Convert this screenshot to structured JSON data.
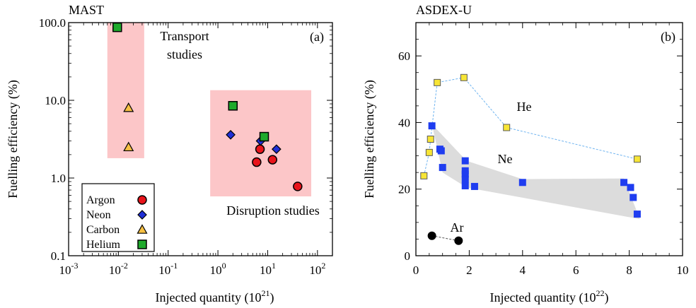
{
  "colors": {
    "argon": "#e8141b",
    "neon": "#1f2fd6",
    "carbon": "#f7c043",
    "helium": "#1faa2c",
    "he_asdex": "#f7e536",
    "ne_asdex": "#1f3df0",
    "ar_asdex": "#000000",
    "region_fill": "#fcc6c8",
    "band_fill": "#dcdcdc",
    "he_line": "#6fb4f0"
  },
  "chart_data": [
    {
      "type": "scatter",
      "title": "MAST",
      "panel_label": "(a)",
      "xlabel_text": "Injected quantity (10",
      "xlabel_sup": "21",
      "xlabel_close": ")",
      "ylabel": "Fuelling efficiency (%)",
      "x_scale": "log",
      "y_scale": "log",
      "xlim": [
        0.001,
        200
      ],
      "ylim": [
        0.1,
        100
      ],
      "x_ticks": [
        {
          "base": "10",
          "exp": "-3",
          "value": 0.001
        },
        {
          "base": "10",
          "exp": "-2",
          "value": 0.01
        },
        {
          "base": "10",
          "exp": "-1",
          "value": 0.1
        },
        {
          "base": "10",
          "exp": "0",
          "value": 1
        },
        {
          "base": "10",
          "exp": "1",
          "value": 10
        },
        {
          "base": "10",
          "exp": "2",
          "value": 100
        }
      ],
      "y_ticks": [
        {
          "label": "0.1",
          "value": 0.1
        },
        {
          "label": "1.0",
          "value": 1
        },
        {
          "label": "10.0",
          "value": 10
        },
        {
          "label": "100.0",
          "value": 100
        }
      ],
      "regions": [
        {
          "label_lines": [
            "Transport",
            "studies"
          ],
          "x_range": [
            0.006,
            0.033
          ],
          "y_range": [
            1.8,
            100
          ]
        },
        {
          "label_lines": [
            "Disruption studies"
          ],
          "x_range": [
            0.7,
            75
          ],
          "y_range": [
            0.58,
            13.5
          ]
        }
      ],
      "series": [
        {
          "name": "Argon",
          "marker": "circle",
          "color_key": "argon",
          "points": [
            [
              6.0,
              1.6
            ],
            [
              7.0,
              2.35
            ],
            [
              12.5,
              1.72
            ],
            [
              40,
              0.78
            ]
          ]
        },
        {
          "name": "Neon",
          "marker": "diamond",
          "color_key": "neon",
          "points": [
            [
              1.8,
              3.6
            ],
            [
              7.2,
              3.0
            ],
            [
              15,
              2.35
            ]
          ]
        },
        {
          "name": "Carbon",
          "marker": "triangle",
          "color_key": "carbon",
          "points": [
            [
              0.016,
              8.0
            ],
            [
              0.016,
              2.5
            ]
          ]
        },
        {
          "name": "Helium",
          "marker": "square",
          "color_key": "helium",
          "points": [
            [
              0.0095,
              87
            ],
            [
              2.0,
              8.5
            ],
            [
              8.5,
              3.4
            ]
          ]
        }
      ],
      "legend_position": "bottom-left"
    },
    {
      "type": "scatter",
      "title": "ASDEX-U",
      "panel_label": "(b)",
      "xlabel_text": "Injected quantity (10",
      "xlabel_sup": "22",
      "xlabel_close": ")",
      "ylabel": "Fuelling efficiency (%)",
      "x_scale": "linear",
      "y_scale": "linear",
      "xlim": [
        0,
        10
      ],
      "ylim": [
        0,
        70
      ],
      "x_ticks": [
        0,
        2,
        4,
        6,
        8,
        10
      ],
      "y_ticks": [
        0,
        20,
        40,
        60
      ],
      "series": [
        {
          "name": "He",
          "marker": "square",
          "color_key": "he_asdex",
          "connected": true,
          "points": [
            [
              0.3,
              24
            ],
            [
              0.55,
              35
            ],
            [
              0.5,
              31
            ],
            [
              0.8,
              52
            ],
            [
              1.8,
              53.5
            ],
            [
              3.4,
              38.5
            ],
            [
              8.3,
              29
            ]
          ],
          "line_order": [
            [
              0.3,
              24
            ],
            [
              0.5,
              31
            ],
            [
              0.55,
              35
            ],
            [
              0.8,
              52
            ],
            [
              1.8,
              53.5
            ],
            [
              3.4,
              38.5
            ],
            [
              8.3,
              29
            ]
          ]
        },
        {
          "name": "Ne",
          "marker": "square",
          "color_key": "ne_asdex",
          "band": true,
          "points": [
            [
              0.6,
              39
            ],
            [
              0.9,
              32
            ],
            [
              0.95,
              31.5
            ],
            [
              1.0,
              26.5
            ],
            [
              1.85,
              28.5
            ],
            [
              1.85,
              25.5
            ],
            [
              1.85,
              24.5
            ],
            [
              1.85,
              23
            ],
            [
              1.85,
              21
            ],
            [
              2.2,
              20.8
            ],
            [
              4.0,
              22
            ],
            [
              7.8,
              22
            ],
            [
              8.05,
              20.5
            ],
            [
              8.15,
              17.5
            ],
            [
              8.3,
              12.5
            ]
          ],
          "band_polygon": [
            [
              0.6,
              39.5
            ],
            [
              1.9,
              28.5
            ],
            [
              4.0,
              23
            ],
            [
              7.8,
              23.2
            ],
            [
              8.4,
              11
            ],
            [
              1.9,
              20.5
            ],
            [
              1.0,
              25
            ]
          ]
        },
        {
          "name": "Ar",
          "marker": "circle",
          "color_key": "ar_asdex",
          "connected": true,
          "points": [
            [
              0.6,
              6
            ],
            [
              1.6,
              4.5
            ]
          ]
        }
      ]
    }
  ]
}
